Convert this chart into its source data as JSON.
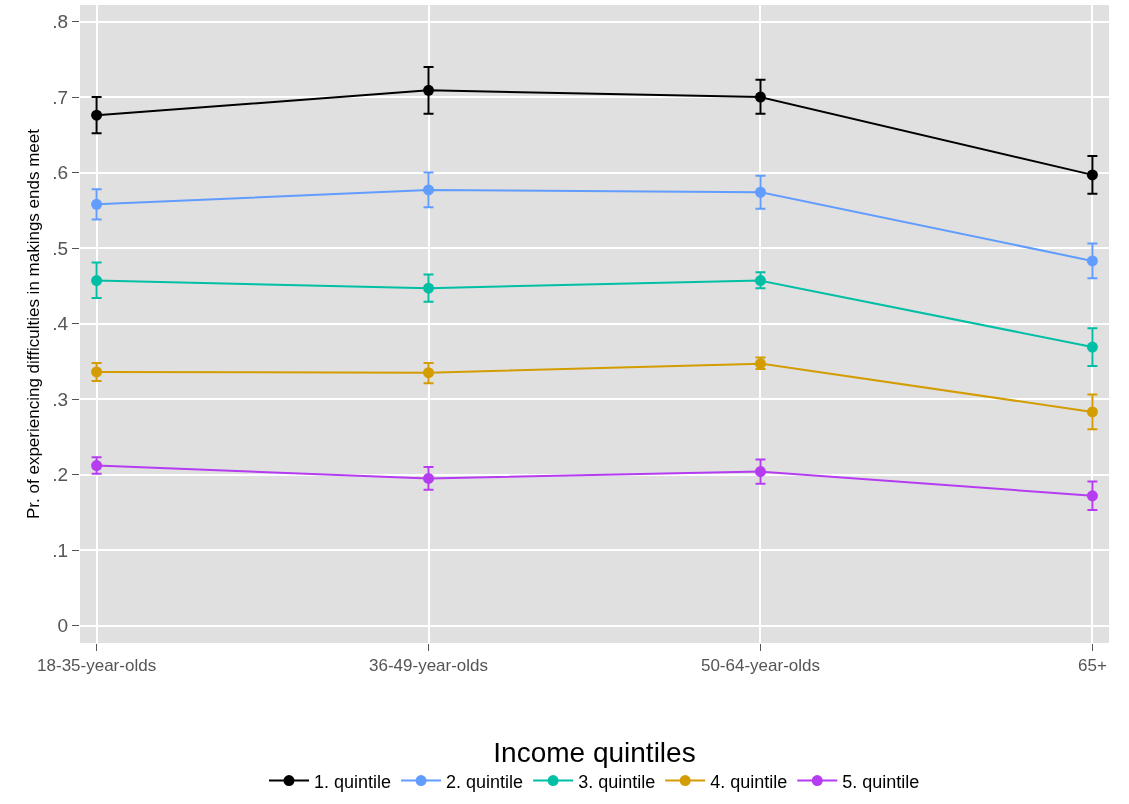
{
  "chart_data": {
    "type": "line",
    "ylabel": "Pr. of experiencing difficulties in makings ends meet",
    "legend_title": "Income quintiles",
    "categories": [
      "18-35-year-olds",
      "36-49-year-olds",
      "50-64-year-olds",
      "65+"
    ],
    "series": [
      {
        "name": "1. quintile",
        "color": "#000000",
        "values": [
          0.676,
          0.709,
          0.7,
          0.597
        ],
        "errors": [
          [
            0.652,
            0.7
          ],
          [
            0.678,
            0.74
          ],
          [
            0.678,
            0.723
          ],
          [
            0.572,
            0.622
          ]
        ]
      },
      {
        "name": "2. quintile",
        "color": "#619cff",
        "values": [
          0.558,
          0.577,
          0.574,
          0.483
        ],
        "errors": [
          [
            0.538,
            0.578
          ],
          [
            0.554,
            0.6
          ],
          [
            0.552,
            0.596
          ],
          [
            0.46,
            0.506
          ]
        ]
      },
      {
        "name": "3. quintile",
        "color": "#00bfa4",
        "values": [
          0.457,
          0.447,
          0.457,
          0.369
        ],
        "errors": [
          [
            0.434,
            0.481
          ],
          [
            0.429,
            0.465
          ],
          [
            0.447,
            0.468
          ],
          [
            0.344,
            0.394
          ]
        ]
      },
      {
        "name": "4. quintile",
        "color": "#d39c00",
        "values": [
          0.336,
          0.335,
          0.347,
          0.283
        ],
        "errors": [
          [
            0.324,
            0.348
          ],
          [
            0.321,
            0.348
          ],
          [
            0.34,
            0.355
          ],
          [
            0.26,
            0.306
          ]
        ]
      },
      {
        "name": "5. quintile",
        "color": "#b53cf0",
        "values": [
          0.212,
          0.195,
          0.204,
          0.172
        ],
        "errors": [
          [
            0.201,
            0.223
          ],
          [
            0.18,
            0.21
          ],
          [
            0.188,
            0.22
          ],
          [
            0.153,
            0.191
          ]
        ]
      }
    ],
    "ylim": [
      -0.023,
      0.822
    ],
    "yticks": [
      {
        "value": 0,
        "label": "0"
      },
      {
        "value": 0.1,
        "label": ".1"
      },
      {
        "value": 0.2,
        "label": ".2"
      },
      {
        "value": 0.3,
        "label": ".3"
      },
      {
        "value": 0.4,
        "label": ".4"
      },
      {
        "value": 0.5,
        "label": ".5"
      },
      {
        "value": 0.6,
        "label": ".6"
      },
      {
        "value": 0.7,
        "label": ".7"
      },
      {
        "value": 0.8,
        "label": ".8"
      }
    ],
    "grid": true,
    "legend": "bottom",
    "marker": "circle",
    "line_style": "solid"
  }
}
